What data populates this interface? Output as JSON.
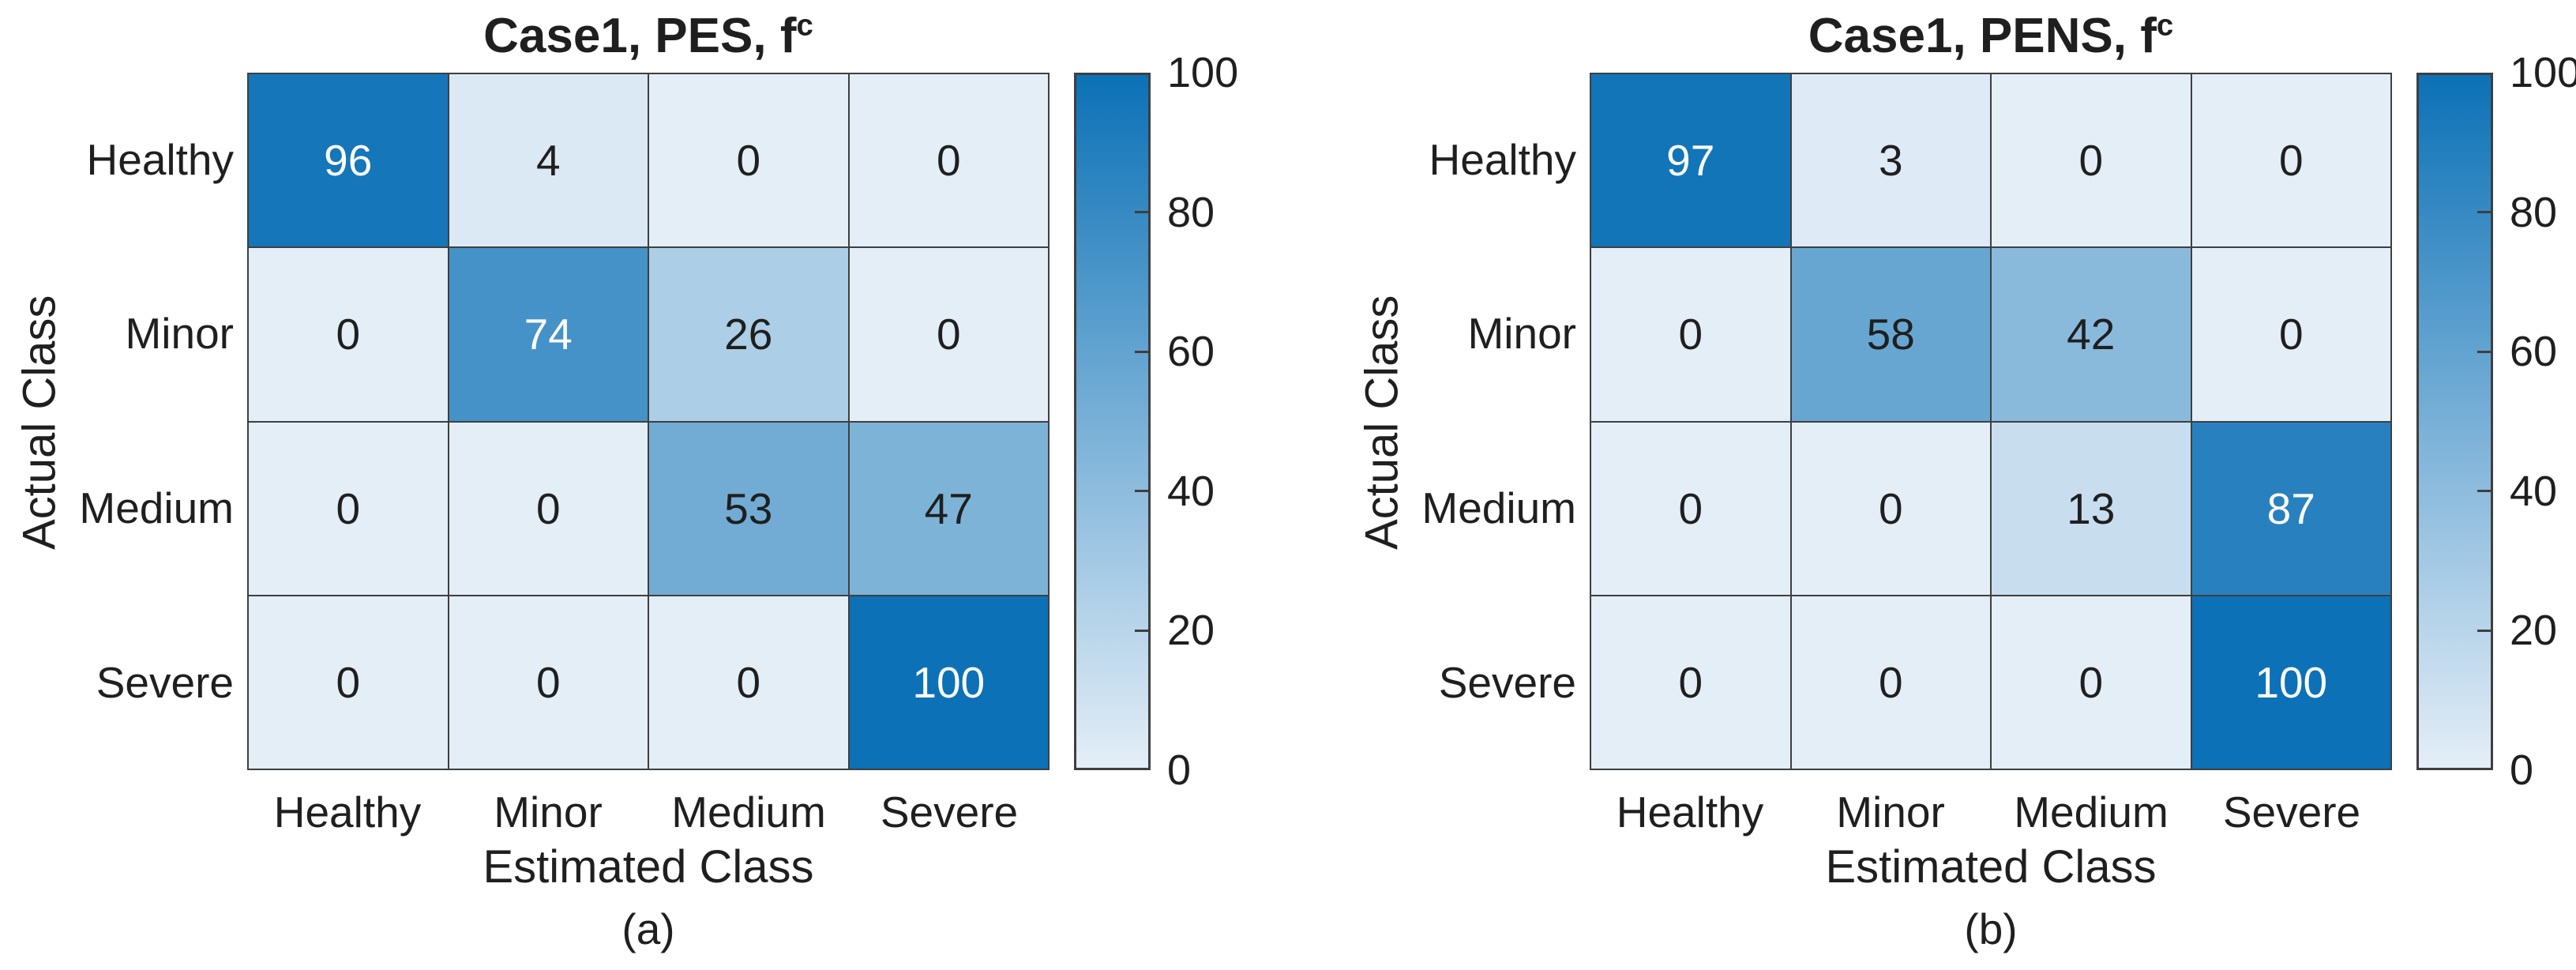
{
  "figure": {
    "background": "#ffffff",
    "panel_count": 2
  },
  "colors": {
    "cell_low": "#e4eef7",
    "cell_high": "#0c71b6",
    "grid_line": "#3f3f3f",
    "text": "#1f1f1f",
    "cell_text_light": "#ffffff"
  },
  "chart_data": [
    {
      "type": "heatmap",
      "title": "Case1, PES, f",
      "title_superscript": "c",
      "xlabel": "Estimated Class",
      "ylabel": "Actual Class",
      "caption": "(a)",
      "categories_x": [
        "Healthy",
        "Minor",
        "Medium",
        "Severe"
      ],
      "categories_y": [
        "Healthy",
        "Minor",
        "Medium",
        "Severe"
      ],
      "values": [
        [
          96,
          4,
          0,
          0
        ],
        [
          0,
          74,
          26,
          0
        ],
        [
          0,
          0,
          53,
          47
        ],
        [
          0,
          0,
          0,
          100
        ]
      ],
      "value_range": [
        0,
        100
      ],
      "white_text_threshold": 65,
      "colorbar": {
        "min": 0,
        "max": 100,
        "tick_label_values": [
          0,
          20,
          40,
          60,
          80,
          100
        ],
        "tick_mark_values": [
          20,
          40,
          60,
          80
        ],
        "position": "right"
      },
      "grid_on": true
    },
    {
      "type": "heatmap",
      "title": "Case1, PENS, f",
      "title_superscript": "c",
      "xlabel": "Estimated Class",
      "ylabel": "Actual Class",
      "caption": "(b)",
      "categories_x": [
        "Healthy",
        "Minor",
        "Medium",
        "Severe"
      ],
      "categories_y": [
        "Healthy",
        "Minor",
        "Medium",
        "Severe"
      ],
      "values": [
        [
          97,
          3,
          0,
          0
        ],
        [
          0,
          58,
          42,
          0
        ],
        [
          0,
          0,
          13,
          87
        ],
        [
          0,
          0,
          0,
          100
        ]
      ],
      "value_range": [
        0,
        100
      ],
      "white_text_threshold": 65,
      "colorbar": {
        "min": 0,
        "max": 100,
        "tick_label_values": [
          0,
          20,
          40,
          60,
          80,
          100
        ],
        "tick_mark_values": [
          20,
          40,
          60,
          80
        ],
        "position": "right"
      },
      "grid_on": true
    }
  ]
}
